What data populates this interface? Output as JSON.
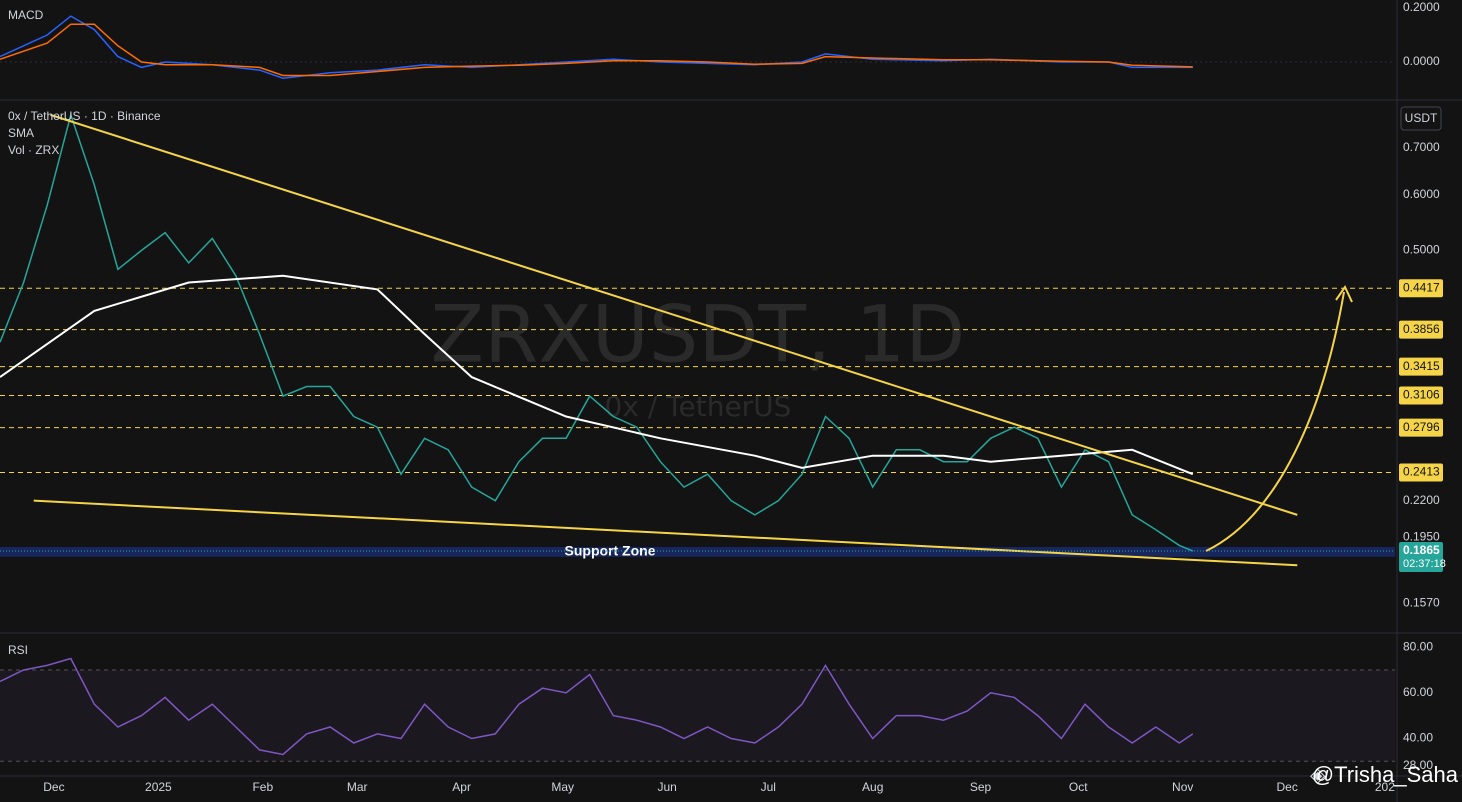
{
  "chart_data": [
    {
      "type": "line",
      "title": "MACD",
      "xlim": [
        0,
        414
      ],
      "ylim": [
        -0.1407,
        0.2296
      ],
      "yticks": [
        {
          "value": 0.2,
          "label": "0.2000"
        },
        {
          "value": 0,
          "label": "0.0000"
        }
      ],
      "series": [
        {
          "color": "#2962ff",
          "x": [
            0,
            14,
            21,
            28,
            35,
            42,
            49,
            63,
            77,
            84,
            98,
            112,
            126,
            140,
            154,
            168,
            182,
            196,
            210,
            224,
            238,
            245,
            259,
            280,
            294,
            315,
            329,
            336,
            354
          ],
          "values": [
            0.02,
            0.1,
            0.17,
            0.12,
            0.02,
            -0.02,
            0.0,
            -0.01,
            -0.03,
            -0.06,
            -0.04,
            -0.03,
            -0.01,
            -0.02,
            -0.01,
            0.0,
            0.01,
            0.0,
            -0.005,
            -0.01,
            0.0,
            0.03,
            0.01,
            0.005,
            0.01,
            0.0,
            0.0,
            -0.02,
            -0.02
          ]
        },
        {
          "color": "#ff6d00",
          "x": [
            0,
            14,
            21,
            28,
            35,
            42,
            49,
            63,
            77,
            84,
            98,
            112,
            126,
            140,
            154,
            168,
            182,
            196,
            210,
            224,
            238,
            245,
            259,
            280,
            294,
            315,
            329,
            336,
            354
          ],
          "values": [
            0.01,
            0.07,
            0.14,
            0.14,
            0.06,
            0.0,
            -0.01,
            -0.01,
            -0.02,
            -0.05,
            -0.05,
            -0.035,
            -0.02,
            -0.015,
            -0.012,
            -0.005,
            0.005,
            0.005,
            0.0,
            -0.008,
            -0.005,
            0.02,
            0.015,
            0.008,
            0.008,
            0.003,
            0.0,
            -0.012,
            -0.018
          ]
        }
      ]
    },
    {
      "type": "line",
      "title": "0x / TetherUS · 1D · Binance",
      "watermark": "ZRXUSDT, 1D",
      "watermark_subtitle": "0x / TetherUS",
      "currency": "USDT",
      "volume_label": "Vol · ZRX",
      "log_scale": true,
      "xlim": [
        0,
        414
      ],
      "ylim": [
        0.143,
        0.819
      ],
      "yticks": [
        {
          "value": 0.7,
          "label": "0.7000"
        },
        {
          "value": 0.6,
          "label": "0.6000"
        },
        {
          "value": 0.5,
          "label": "0.5000"
        },
        {
          "value": 0.22,
          "label": "0.2200"
        },
        {
          "value": 0.195,
          "label": "0.1950"
        },
        {
          "value": 0.157,
          "label": "0.1570"
        }
      ],
      "levels": [
        {
          "value": 0.4417,
          "label": "0.4417"
        },
        {
          "value": 0.3856,
          "label": "0.3856"
        },
        {
          "value": 0.3415,
          "label": "0.3415"
        },
        {
          "value": 0.3106,
          "label": "0.3106"
        },
        {
          "value": 0.2796,
          "label": "0.2796"
        },
        {
          "value": 0.2413,
          "label": "0.2413"
        }
      ],
      "level_color": "#f5d547",
      "last_price": {
        "value": 0.1865,
        "label": "0.1865",
        "countdown": "02:37:18",
        "color": "#26a69a"
      },
      "support_zone": {
        "label": "Support Zone",
        "range": [
          0.183,
          0.189
        ],
        "color": "#1a2a6c"
      },
      "series": [
        {
          "color": "#26a69a",
          "x": [
            0,
            7,
            14,
            21,
            28,
            35,
            42,
            49,
            56,
            63,
            70,
            77,
            84,
            91,
            98,
            105,
            112,
            119,
            126,
            133,
            140,
            147,
            154,
            161,
            168,
            175,
            182,
            189,
            196,
            203,
            210,
            217,
            224,
            231,
            238,
            245,
            252,
            259,
            266,
            273,
            280,
            287,
            294,
            301,
            308,
            315,
            322,
            329,
            336,
            343,
            350,
            354
          ],
          "values": [
            0.37,
            0.45,
            0.58,
            0.78,
            0.62,
            0.47,
            0.5,
            0.53,
            0.48,
            0.52,
            0.46,
            0.38,
            0.31,
            0.32,
            0.32,
            0.29,
            0.28,
            0.24,
            0.27,
            0.26,
            0.23,
            0.22,
            0.25,
            0.27,
            0.27,
            0.31,
            0.29,
            0.28,
            0.25,
            0.23,
            0.24,
            0.22,
            0.21,
            0.22,
            0.24,
            0.29,
            0.27,
            0.23,
            0.26,
            0.26,
            0.25,
            0.25,
            0.27,
            0.28,
            0.27,
            0.23,
            0.26,
            0.25,
            0.21,
            0.2,
            0.19,
            0.1865
          ]
        },
        {
          "name": "SMA",
          "color": "#ffffff",
          "x": [
            0,
            28,
            56,
            84,
            112,
            126,
            140,
            168,
            196,
            224,
            238,
            259,
            280,
            294,
            315,
            336,
            354
          ],
          "values": [
            0.33,
            0.41,
            0.45,
            0.46,
            0.44,
            0.38,
            0.33,
            0.29,
            0.27,
            0.255,
            0.245,
            0.255,
            0.255,
            0.25,
            0.255,
            0.26,
            0.24
          ]
        }
      ],
      "trendlines": [
        {
          "color": "#f5d547",
          "x": [
            15,
            385
          ],
          "y": [
            0.78,
            0.21
          ]
        },
        {
          "color": "#f5d547",
          "x": [
            10,
            385
          ],
          "y": [
            0.22,
            0.178
          ]
        }
      ]
    },
    {
      "type": "line",
      "title": "RSI",
      "xlim": [
        0,
        414
      ],
      "ylim": [
        24,
        84
      ],
      "yticks": [
        {
          "value": 80,
          "label": "80.00"
        },
        {
          "value": 60,
          "label": "60.00"
        },
        {
          "value": 40,
          "label": "40.00"
        },
        {
          "value": 28,
          "label": "28.00"
        }
      ],
      "bands": [
        70,
        30
      ],
      "series": [
        {
          "color": "#7e57c2",
          "x": [
            0,
            7,
            14,
            21,
            28,
            35,
            42,
            49,
            56,
            63,
            70,
            77,
            84,
            91,
            98,
            105,
            112,
            119,
            126,
            133,
            140,
            147,
            154,
            161,
            168,
            175,
            182,
            189,
            196,
            203,
            210,
            217,
            224,
            231,
            238,
            245,
            252,
            259,
            266,
            273,
            280,
            287,
            294,
            301,
            308,
            315,
            322,
            329,
            336,
            343,
            350,
            354
          ],
          "values": [
            65,
            70,
            72,
            75,
            55,
            45,
            50,
            58,
            48,
            55,
            45,
            35,
            33,
            42,
            45,
            38,
            42,
            40,
            55,
            45,
            40,
            42,
            55,
            62,
            60,
            68,
            50,
            48,
            45,
            40,
            45,
            40,
            38,
            45,
            55,
            72,
            55,
            40,
            50,
            50,
            48,
            52,
            60,
            58,
            50,
            40,
            55,
            45,
            38,
            45,
            38,
            42
          ]
        }
      ],
      "xticks": [
        {
          "value": 16,
          "label": "Dec"
        },
        {
          "value": 47,
          "label": "2025"
        },
        {
          "value": 78,
          "label": "Feb"
        },
        {
          "value": 106,
          "label": "Mar"
        },
        {
          "value": 137,
          "label": "Apr"
        },
        {
          "value": 167,
          "label": "May"
        },
        {
          "value": 198,
          "label": "Jun"
        },
        {
          "value": 228,
          "label": "Jul"
        },
        {
          "value": 259,
          "label": "Aug"
        },
        {
          "value": 291,
          "label": "Sep"
        },
        {
          "value": 320,
          "label": "Oct"
        },
        {
          "value": 351,
          "label": "Nov"
        },
        {
          "value": 382,
          "label": "Dec"
        },
        {
          "value": 411,
          "label": "202"
        }
      ]
    }
  ],
  "credit": "@Trisha_Saha"
}
